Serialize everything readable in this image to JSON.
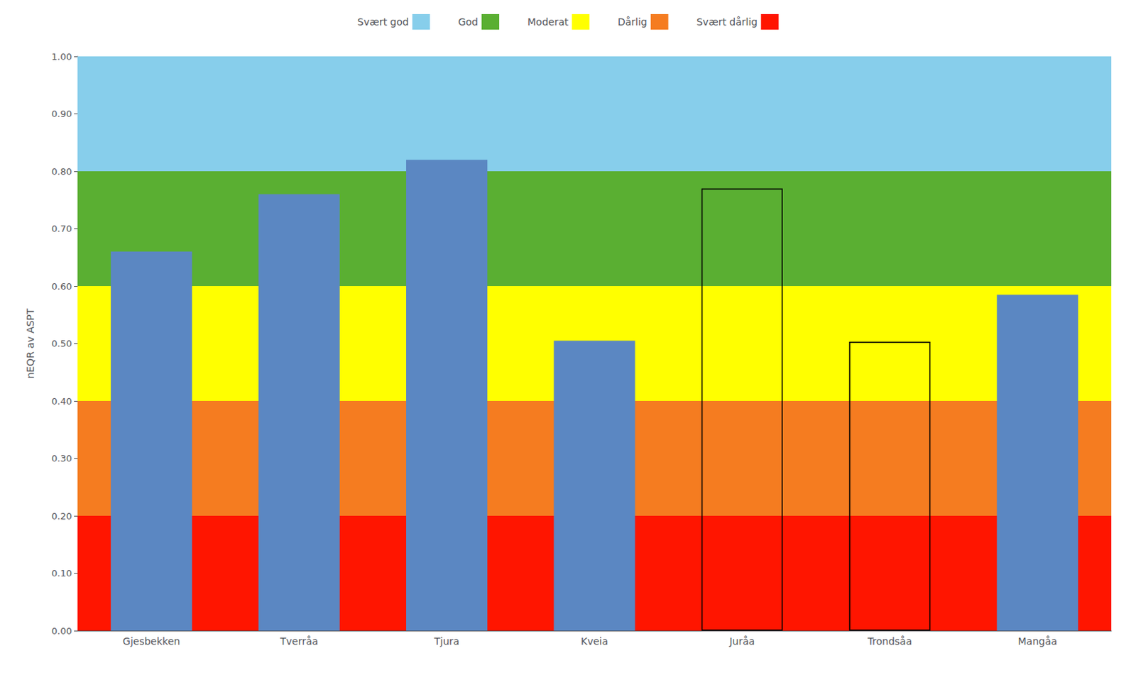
{
  "chart_data": {
    "type": "bar",
    "categories": [
      "Gjesbekken",
      "Tverråa",
      "Tjura",
      "Kveia",
      "Juråa",
      "Trondsåa",
      "Mangåa"
    ],
    "values": [
      0.66,
      0.76,
      0.82,
      0.505,
      0.77,
      0.503,
      0.585
    ],
    "colors": [
      "#5b87c2",
      "#5b87c2",
      "#5b87c2",
      "#5b87c2",
      "none",
      "none",
      "#5b87c2"
    ],
    "bands": [
      {
        "name": "Svært god",
        "ymin": 0.8,
        "ymax": 1.0,
        "color": "#87ceeb"
      },
      {
        "name": "God",
        "ymin": 0.6,
        "ymax": 0.8,
        "color": "#5aaf32"
      },
      {
        "name": "Moderat",
        "ymin": 0.4,
        "ymax": 0.6,
        "color": "#ffff00"
      },
      {
        "name": "Dårlig",
        "ymin": 0.2,
        "ymax": 0.4,
        "color": "#f57c20"
      },
      {
        "name": "Svært dårlig",
        "ymin": 0.0,
        "ymax": 0.2,
        "color": "#ff1500"
      }
    ],
    "ylabel": "nEQR av ASPT",
    "ylim": [
      0.0,
      1.0
    ],
    "yticks": [
      {
        "value": 0.0,
        "label": "0.00"
      },
      {
        "value": 0.1,
        "label": "0.10"
      },
      {
        "value": 0.2,
        "label": "0.20"
      },
      {
        "value": 0.3,
        "label": "0.30"
      },
      {
        "value": 0.4,
        "label": "0.40"
      },
      {
        "value": 0.5,
        "label": "0.50"
      },
      {
        "value": 0.6,
        "label": "0.60"
      },
      {
        "value": 0.7,
        "label": "0.70"
      },
      {
        "value": 0.8,
        "label": "0.80"
      },
      {
        "value": 0.9,
        "label": "0.90"
      },
      {
        "value": 1.0,
        "label": "1.00"
      }
    ],
    "grid": false,
    "legend": "top"
  }
}
